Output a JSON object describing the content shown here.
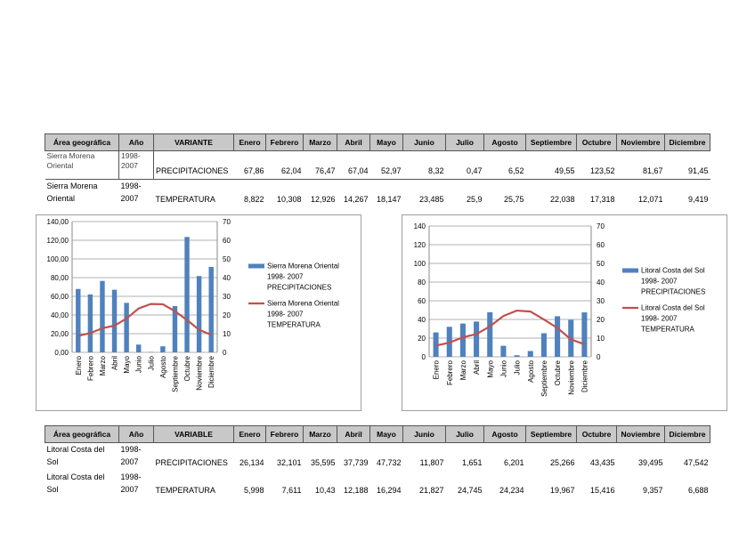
{
  "table1": {
    "headers": [
      "Área geográfica",
      "Año",
      "VARIANTE",
      "Enero",
      "Febrero",
      "Marzo",
      "Abril",
      "Mayo",
      "Junio",
      "Julio",
      "Agosto",
      "Septiembre",
      "Octubre",
      "Noviembre",
      "Diciembre"
    ],
    "rows": [
      {
        "area": "Sierra Morena Oriental",
        "year": "1998-2007",
        "variable": "PRECIPITACIONES",
        "values": [
          "67,86",
          "62,04",
          "76,47",
          "67,04",
          "52,97",
          "8,32",
          "0,47",
          "6,52",
          "49,55",
          "123,52",
          "81,67",
          "91,45"
        ]
      },
      {
        "area": "Sierra Morena Oriental",
        "year": "1998-2007",
        "variable": "TEMPERATURA",
        "values": [
          "8,822",
          "10,308",
          "12,926",
          "14,267",
          "18,147",
          "23,485",
          "25,9",
          "25,75",
          "22,038",
          "17,318",
          "12,071",
          "9,419"
        ]
      }
    ]
  },
  "table2": {
    "headers": [
      "Área geográfica",
      "Año",
      "VARIABLE",
      "Enero",
      "Febrero",
      "Marzo",
      "Abril",
      "Mayo",
      "Junio",
      "Julio",
      "Agosto",
      "Septiembre",
      "Octubre",
      "Noviembre",
      "Diciembre"
    ],
    "rows": [
      {
        "area": "Litoral Costa del Sol",
        "year": "1998-2007",
        "variable": "PRECIPITACIONES",
        "values": [
          "26,134",
          "32,101",
          "35,595",
          "37,739",
          "47,732",
          "11,807",
          "1,651",
          "6,201",
          "25,266",
          "43,435",
          "39,495",
          "47,542"
        ]
      },
      {
        "area": "Litoral Costa del Sol",
        "year": "1998-2007",
        "variable": "TEMPERATURA",
        "values": [
          "5,998",
          "7,611",
          "10,43",
          "12,188",
          "16,294",
          "21,827",
          "24,745",
          "24,234",
          "19,967",
          "15,416",
          "9,357",
          "6,688"
        ]
      }
    ]
  },
  "colors": {
    "bar": "#4f81bd",
    "line": "#c0504d",
    "grid": "#b0b0b0"
  },
  "chart_data": [
    {
      "type": "bar+line",
      "categories": [
        "Enero",
        "Febrero",
        "Marzo",
        "Abril",
        "Mayo",
        "Junio",
        "Julio",
        "Agosto",
        "Septiembre",
        "Octubre",
        "Noviembre",
        "Diciembre"
      ],
      "series": [
        {
          "name": "Sierra Morena Oriental 1998- 2007 PRECIPITACIONES",
          "legend": [
            "Sierra Morena Oriental",
            "1998- 2007",
            "PRECIPITACIONES"
          ],
          "type": "bar",
          "axis": "left",
          "values": [
            67.86,
            62.04,
            76.47,
            67.04,
            52.97,
            8.32,
            0.47,
            6.52,
            49.55,
            123.52,
            81.67,
            91.45
          ]
        },
        {
          "name": "Sierra Morena Oriental 1998- 2007 TEMPERATURA",
          "legend": [
            "Sierra Morena Oriental",
            "1998- 2007",
            "TEMPERATURA"
          ],
          "type": "line",
          "axis": "right",
          "values": [
            8.822,
            10.308,
            12.926,
            14.267,
            18.147,
            23.485,
            25.9,
            25.75,
            22.038,
            17.318,
            12.071,
            9.419
          ]
        }
      ],
      "ylim_left": [
        0,
        140
      ],
      "ylim_right": [
        0,
        70
      ],
      "yticks_left": [
        "0,00",
        "20,00",
        "40,00",
        "60,00",
        "80,00",
        "100,00",
        "120,00",
        "140,00"
      ],
      "yticks_right": [
        "0",
        "10",
        "20",
        "30",
        "40",
        "50",
        "60",
        "70"
      ],
      "grid": true,
      "legend_position": "right"
    },
    {
      "type": "bar+line",
      "categories": [
        "Enero",
        "Febrero",
        "Marzo",
        "Abril",
        "Mayo",
        "Junio",
        "Julio",
        "Agosto",
        "Septiembre",
        "Octubre",
        "Noviembre",
        "Diciembre"
      ],
      "series": [
        {
          "name": "Litoral Costa del Sol 1998- 2007 PRECIPITACIONES",
          "legend": [
            "Litoral Costa del Sol",
            "1998- 2007",
            "PRECIPITACIONES"
          ],
          "type": "bar",
          "axis": "left",
          "values": [
            26.134,
            32.101,
            35.595,
            37.739,
            47.732,
            11.807,
            1.651,
            6.201,
            25.266,
            43.435,
            39.495,
            47.542
          ]
        },
        {
          "name": "Litoral Costa del Sol 1998- 2007 TEMPERATURA",
          "legend": [
            "Litoral Costa del Sol",
            "1998- 2007",
            "TEMPERATURA"
          ],
          "type": "line",
          "axis": "right",
          "values": [
            5.998,
            7.611,
            10.43,
            12.188,
            16.294,
            21.827,
            24.745,
            24.234,
            19.967,
            15.416,
            9.357,
            6.688
          ]
        }
      ],
      "ylim_left": [
        0,
        140
      ],
      "ylim_right": [
        0,
        70
      ],
      "yticks_left": [
        "0",
        "20",
        "40",
        "60",
        "80",
        "100",
        "120",
        "140"
      ],
      "yticks_right": [
        "0",
        "10",
        "20",
        "30",
        "40",
        "50",
        "60",
        "70"
      ],
      "grid": true,
      "legend_position": "right"
    }
  ]
}
